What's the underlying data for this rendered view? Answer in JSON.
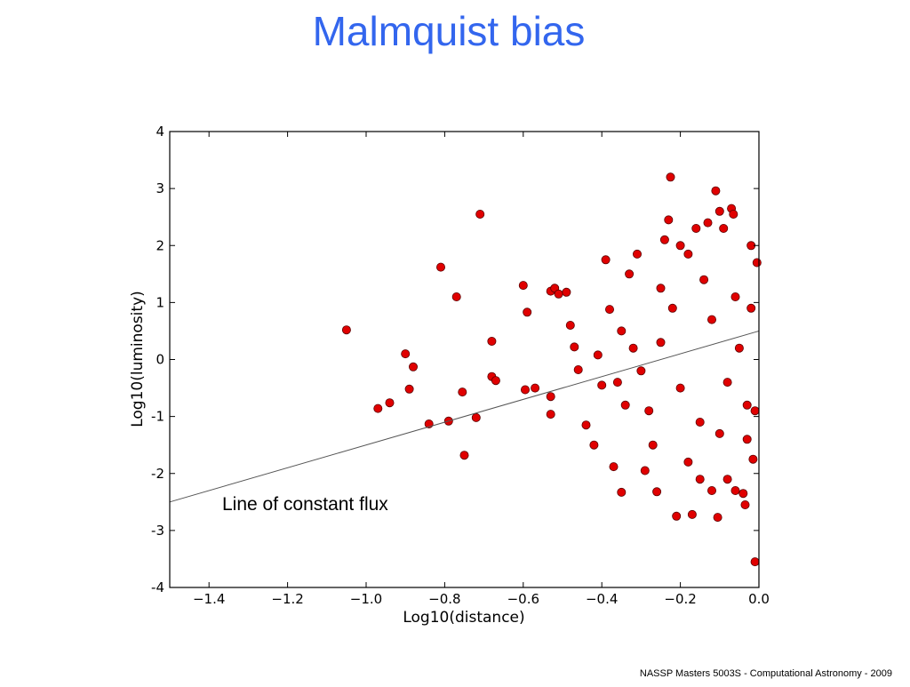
{
  "slide": {
    "title": "Malmquist bias",
    "footer": "NASSP Masters 5003S - Computational Astronomy - 2009"
  },
  "colors": {
    "title": "#3366ee",
    "points": "#e00000",
    "point_edge": "#5a0000",
    "line": "#555555"
  },
  "chart_data": {
    "type": "scatter",
    "title": "",
    "xlabel": "Log10(distance)",
    "ylabel": "Log10(luminosity)",
    "xlim": [
      -1.5,
      0.0
    ],
    "ylim": [
      -4,
      4
    ],
    "x_ticks": [
      -1.4,
      -1.2,
      -1.0,
      -0.8,
      -0.6,
      -0.4,
      -0.2,
      0.0
    ],
    "x_tick_labels": [
      "−1.4",
      "−1.2",
      "−1.0",
      "−0.8",
      "−0.6",
      "−0.4",
      "−0.2",
      "0.0"
    ],
    "y_ticks": [
      -4,
      -3,
      -2,
      -1,
      0,
      1,
      2,
      3,
      4
    ],
    "y_tick_labels": [
      "-4",
      "-3",
      "-2",
      "-1",
      "0",
      "1",
      "2",
      "3",
      "4"
    ],
    "grid": false,
    "annotation": "Line of constant flux",
    "line_of_constant_flux": {
      "x": [
        -1.5,
        0.0
      ],
      "y": [
        -2.5,
        0.5
      ]
    },
    "points": [
      [
        -1.05,
        0.52
      ],
      [
        -0.97,
        -0.86
      ],
      [
        -0.94,
        -0.76
      ],
      [
        -0.9,
        0.1
      ],
      [
        -0.88,
        -0.13
      ],
      [
        -0.89,
        -0.52
      ],
      [
        -0.81,
        1.62
      ],
      [
        -0.84,
        -1.13
      ],
      [
        -0.79,
        -1.08
      ],
      [
        -0.77,
        1.1
      ],
      [
        -0.755,
        -0.57
      ],
      [
        -0.75,
        -1.68
      ],
      [
        -0.71,
        2.55
      ],
      [
        -0.72,
        -1.02
      ],
      [
        -0.68,
        0.32
      ],
      [
        -0.68,
        -0.3
      ],
      [
        -0.67,
        -0.37
      ],
      [
        -0.6,
        1.3
      ],
      [
        -0.59,
        0.83
      ],
      [
        -0.595,
        -0.53
      ],
      [
        -0.57,
        -0.5
      ],
      [
        -0.53,
        1.2
      ],
      [
        -0.52,
        1.25
      ],
      [
        -0.51,
        1.15
      ],
      [
        -0.53,
        -0.65
      ],
      [
        -0.53,
        -0.96
      ],
      [
        -0.48,
        0.6
      ],
      [
        -0.47,
        0.22
      ],
      [
        -0.49,
        1.18
      ],
      [
        -0.46,
        -0.18
      ],
      [
        -0.44,
        -1.15
      ],
      [
        -0.42,
        -1.5
      ],
      [
        -0.41,
        0.08
      ],
      [
        -0.4,
        -0.45
      ],
      [
        -0.39,
        1.75
      ],
      [
        -0.38,
        0.88
      ],
      [
        -0.37,
        -1.88
      ],
      [
        -0.35,
        -2.33
      ],
      [
        -0.34,
        -0.8
      ],
      [
        -0.33,
        1.5
      ],
      [
        -0.31,
        1.85
      ],
      [
        -0.29,
        -1.95
      ],
      [
        -0.27,
        -1.5
      ],
      [
        -0.26,
        -2.32
      ],
      [
        -0.25,
        1.25
      ],
      [
        -0.24,
        2.1
      ],
      [
        -0.225,
        3.2
      ],
      [
        -0.23,
        2.45
      ],
      [
        -0.21,
        -2.75
      ],
      [
        -0.2,
        2.0
      ],
      [
        -0.18,
        1.85
      ],
      [
        -0.17,
        -2.72
      ],
      [
        -0.16,
        2.3
      ],
      [
        -0.15,
        -2.1
      ],
      [
        -0.13,
        2.4
      ],
      [
        -0.12,
        -2.3
      ],
      [
        -0.11,
        2.96
      ],
      [
        -0.105,
        -2.77
      ],
      [
        -0.1,
        2.6
      ],
      [
        -0.09,
        2.3
      ],
      [
        -0.08,
        -2.1
      ],
      [
        -0.07,
        2.65
      ],
      [
        -0.065,
        2.55
      ],
      [
        -0.06,
        -2.3
      ],
      [
        -0.04,
        -2.35
      ],
      [
        -0.035,
        -2.55
      ],
      [
        -0.02,
        2.0
      ],
      [
        -0.01,
        -3.55
      ],
      [
        -0.005,
        1.7
      ],
      [
        -0.015,
        -1.75
      ],
      [
        -0.03,
        -0.8
      ],
      [
        -0.15,
        -1.1
      ],
      [
        -0.2,
        -0.5
      ],
      [
        -0.25,
        0.3
      ],
      [
        -0.3,
        -0.2
      ],
      [
        -0.35,
        0.5
      ],
      [
        -0.12,
        0.7
      ],
      [
        -0.08,
        -0.4
      ],
      [
        -0.05,
        0.2
      ],
      [
        -0.02,
        0.9
      ],
      [
        -0.01,
        -0.9
      ],
      [
        -0.14,
        1.4
      ],
      [
        -0.18,
        -1.8
      ],
      [
        -0.22,
        0.9
      ],
      [
        -0.28,
        -0.9
      ],
      [
        -0.32,
        0.2
      ],
      [
        -0.36,
        -0.4
      ],
      [
        -0.1,
        -1.3
      ],
      [
        -0.06,
        1.1
      ],
      [
        -0.03,
        -1.4
      ]
    ]
  }
}
